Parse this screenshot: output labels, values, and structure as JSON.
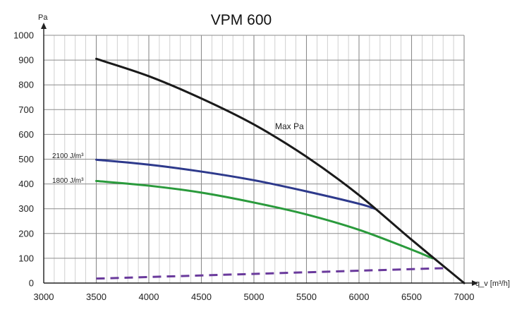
{
  "chart_data": {
    "type": "line",
    "title": "VPM 600",
    "xlabel": "q_v [m³/h]",
    "ylabel": "Pa",
    "xlim": [
      3000,
      7000
    ],
    "ylim": [
      0,
      1000
    ],
    "x_ticks": [
      3000,
      3500,
      4000,
      4500,
      5000,
      5500,
      6000,
      6500,
      7000
    ],
    "y_ticks": [
      0,
      100,
      200,
      300,
      400,
      500,
      600,
      700,
      800,
      900,
      1000
    ],
    "x_tick_labels": [
      "3000",
      "3500",
      "4000",
      "4500",
      "5000",
      "5500",
      "6000",
      "6500",
      "7000"
    ],
    "y_tick_labels": [
      "0",
      "100",
      "200",
      "300",
      "400",
      "500",
      "600",
      "700",
      "800",
      "900",
      "1000"
    ],
    "grid": true,
    "minor_x_step": 100,
    "major_y_step": 100,
    "series": [
      {
        "name": "Max Pa",
        "color": "#1a1a1a",
        "dashed": false,
        "x": [
          3500,
          4000,
          4500,
          5000,
          5500,
          6000,
          6500,
          7000
        ],
        "y": [
          905,
          835,
          745,
          640,
          510,
          355,
          175,
          0
        ]
      },
      {
        "name": "2100 J/m³",
        "color": "#2e3a8c",
        "dashed": false,
        "x": [
          3500,
          4000,
          4500,
          5000,
          5500,
          6000,
          6150
        ],
        "y": [
          498,
          478,
          450,
          415,
          370,
          320,
          300
        ]
      },
      {
        "name": "1800 J/m³",
        "color": "#2a9a3c",
        "dashed": false,
        "x": [
          3500,
          4000,
          4500,
          5000,
          5500,
          6000,
          6500,
          6700
        ],
        "y": [
          412,
          393,
          365,
          325,
          277,
          215,
          135,
          100
        ]
      },
      {
        "name": "",
        "color": "#6a3a9c",
        "dashed": true,
        "x": [
          3500,
          6800
        ],
        "y": [
          18,
          60
        ]
      }
    ],
    "annotations": {
      "max_pa": "Max Pa",
      "sfp_2100": "2100 J/m³",
      "sfp_1800": "1800 J/m³"
    }
  }
}
